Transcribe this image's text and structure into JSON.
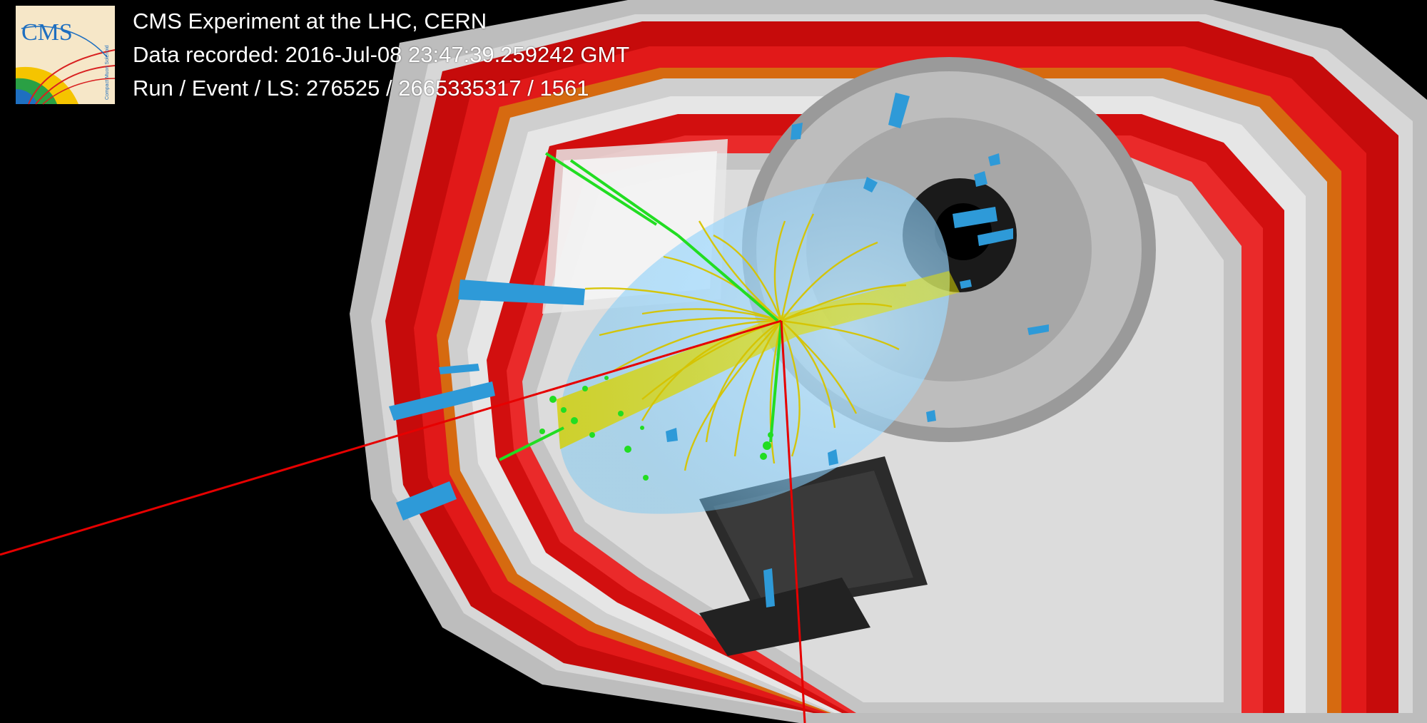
{
  "caption": {
    "line1": "CMS Experiment at the LHC, CERN",
    "line2": "Data recorded: 2016-Jul-08 23:47:39.259242 GMT",
    "line3": "Run / Event / LS: 276525 / 2665335317 / 1561"
  },
  "logo": {
    "text": "CMS",
    "subtext": "Compact Muon Solenoid"
  },
  "colors": {
    "background": "#000000",
    "muon_chamber": "#d40d0d",
    "return_yoke": "#c8c8c8",
    "calo_tower": "#2e9ad8",
    "tracks": "#d6c400",
    "electron_track": "#22dd22",
    "muon_track": "#e60000",
    "jet_cone": "#8fd3ff"
  }
}
